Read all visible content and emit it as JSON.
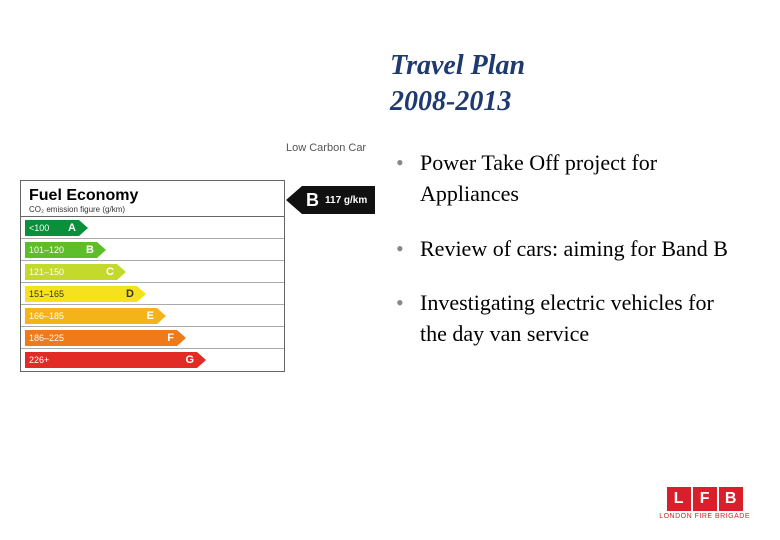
{
  "title_line1": "Travel Plan",
  "title_line2": "2008-2013",
  "bullets": [
    "Power Take Off project for Appliances",
    "Review of cars: aiming for Band B",
    "Investigating electric vehicles for the day van service"
  ],
  "fuel_chart": {
    "title": "Fuel Economy",
    "subtitle": "CO₂ emission figure (g/km)",
    "low_carbon_label": "Low Carbon Car",
    "bands": [
      {
        "range": "<100",
        "letter": "A",
        "color": "#0a8f3a",
        "width": 54
      },
      {
        "range": "101–120",
        "letter": "B",
        "color": "#5cbf2a",
        "width": 72
      },
      {
        "range": "121–150",
        "letter": "C",
        "color": "#c3d92b",
        "width": 92
      },
      {
        "range": "151–165",
        "letter": "D",
        "color": "#f6e21c",
        "width": 112,
        "text_dark": true
      },
      {
        "range": "166–185",
        "letter": "E",
        "color": "#f5b31a",
        "width": 132
      },
      {
        "range": "186–225",
        "letter": "F",
        "color": "#ee7a1a",
        "width": 152
      },
      {
        "range": "226+",
        "letter": "G",
        "color": "#e22b25",
        "width": 172
      }
    ],
    "callout": {
      "letter": "B",
      "value": "117 g/km"
    }
  },
  "logo": {
    "letters": [
      "L",
      "F",
      "B"
    ],
    "text": "LONDON FIRE BRIGADE",
    "color": "#d91f2a"
  }
}
